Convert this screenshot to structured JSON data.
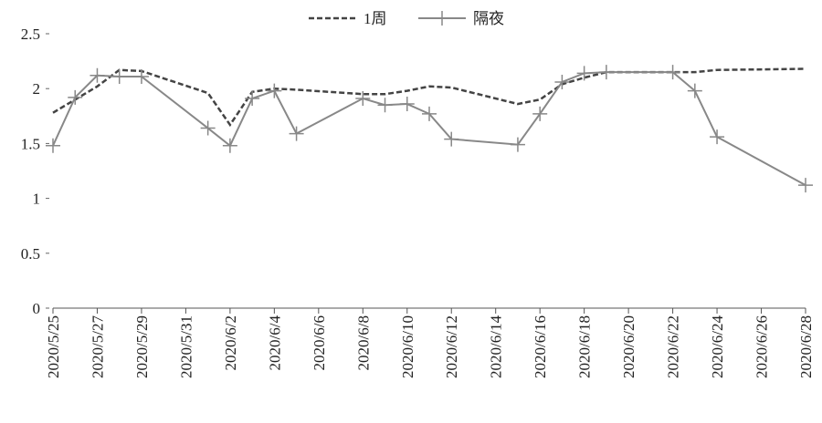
{
  "chart_data": {
    "type": "line",
    "series": [
      {
        "name": "1周",
        "color": "#444444",
        "dash": true,
        "x": [
          "2020/5/25",
          "2020/5/26",
          "2020/5/27",
          "2020/5/28",
          "2020/5/29",
          "2020/6/1",
          "2020/6/2",
          "2020/6/3",
          "2020/6/4",
          "2020/6/5",
          "2020/6/8",
          "2020/6/9",
          "2020/6/10",
          "2020/6/11",
          "2020/6/12",
          "2020/6/15",
          "2020/6/16",
          "2020/6/17",
          "2020/6/18",
          "2020/6/19",
          "2020/6/22",
          "2020/6/23",
          "2020/6/24",
          "2020/6/28"
        ],
        "values": [
          1.78,
          1.9,
          2.02,
          2.17,
          2.16,
          1.96,
          1.67,
          1.97,
          2.0,
          1.99,
          1.95,
          1.95,
          1.98,
          2.02,
          2.01,
          1.86,
          1.9,
          2.04,
          2.1,
          2.15,
          2.15,
          2.15,
          2.17,
          2.18
        ]
      },
      {
        "name": "隔夜",
        "color": "#888888",
        "dash": false,
        "marker": "+",
        "x": [
          "2020/5/25",
          "2020/5/26",
          "2020/5/27",
          "2020/5/28",
          "2020/5/29",
          "2020/6/1",
          "2020/6/2",
          "2020/6/3",
          "2020/6/4",
          "2020/6/5",
          "2020/6/8",
          "2020/6/9",
          "2020/6/10",
          "2020/6/11",
          "2020/6/12",
          "2020/6/15",
          "2020/6/16",
          "2020/6/17",
          "2020/6/18",
          "2020/6/19",
          "2020/6/22",
          "2020/6/23",
          "2020/6/24",
          "2020/6/28"
        ],
        "values": [
          1.48,
          1.92,
          2.12,
          2.11,
          2.11,
          1.64,
          1.48,
          1.91,
          1.98,
          1.59,
          1.91,
          1.85,
          1.86,
          1.77,
          1.54,
          1.49,
          1.77,
          2.06,
          2.14,
          2.15,
          2.15,
          1.98,
          1.56,
          1.12
        ]
      }
    ],
    "xlim": [
      "2020/5/25",
      "2020/6/28"
    ],
    "xticks": [
      "2020/5/25",
      "2020/5/27",
      "2020/5/29",
      "2020/5/31",
      "2020/6/2",
      "2020/6/4",
      "2020/6/6",
      "2020/6/8",
      "2020/6/10",
      "2020/6/12",
      "2020/6/14",
      "2020/6/16",
      "2020/6/18",
      "2020/6/20",
      "2020/6/22",
      "2020/6/24",
      "2020/6/26",
      "2020/6/28"
    ],
    "ylim": [
      0,
      2.5
    ],
    "yticks": [
      0,
      0.5,
      1,
      1.5,
      2,
      2.5
    ],
    "grid": false,
    "legend": "top"
  }
}
